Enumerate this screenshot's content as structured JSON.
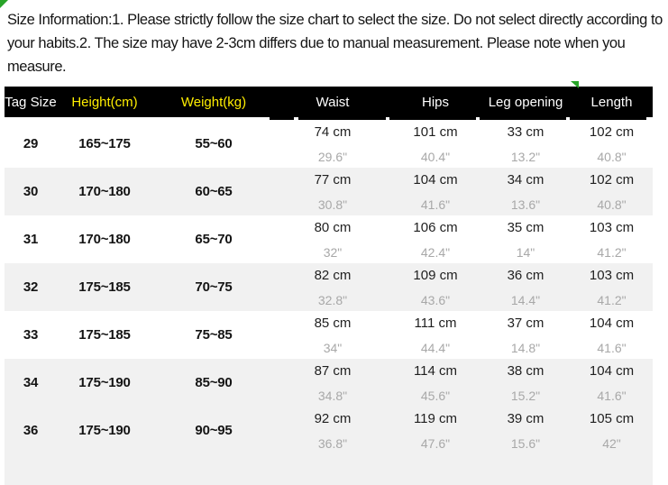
{
  "notice": "Size Information:1. Please strictly follow the size chart to select the size. Do not select directly according to your habits.2. The size may have 2-3cm differs due to manual measurement. Please note when you measure.",
  "table": {
    "headers": [
      {
        "label": "Tag Size",
        "highlight": false
      },
      {
        "label": "Height(cm)",
        "highlight": true
      },
      {
        "label": "Weight(kg)",
        "highlight": true
      },
      {
        "label": "Waist",
        "highlight": false
      },
      {
        "label": "Hips",
        "highlight": false
      },
      {
        "label": "Leg opening",
        "highlight": false
      },
      {
        "label": "Length",
        "highlight": false
      }
    ],
    "rows": [
      {
        "tag": "29",
        "height": "165~175",
        "weight": "55~60",
        "measures": [
          {
            "cm": "74 cm",
            "in": "29.6\""
          },
          {
            "cm": "101 cm",
            "in": "40.4\""
          },
          {
            "cm": "33 cm",
            "in": "13.2\""
          },
          {
            "cm": "102 cm",
            "in": "40.8\""
          }
        ]
      },
      {
        "tag": "30",
        "height": "170~180",
        "weight": "60~65",
        "measures": [
          {
            "cm": "77 cm",
            "in": "30.8\""
          },
          {
            "cm": "104 cm",
            "in": "41.6\""
          },
          {
            "cm": "34 cm",
            "in": "13.6\""
          },
          {
            "cm": "102 cm",
            "in": "40.8\""
          }
        ]
      },
      {
        "tag": "31",
        "height": "170~180",
        "weight": "65~70",
        "measures": [
          {
            "cm": "80 cm",
            "in": "32\""
          },
          {
            "cm": "106 cm",
            "in": "42.4\""
          },
          {
            "cm": "35 cm",
            "in": "14\""
          },
          {
            "cm": "103 cm",
            "in": "41.2\""
          }
        ]
      },
      {
        "tag": "32",
        "height": "175~185",
        "weight": "70~75",
        "measures": [
          {
            "cm": "82 cm",
            "in": "32.8\""
          },
          {
            "cm": "109 cm",
            "in": "43.6\""
          },
          {
            "cm": "36 cm",
            "in": "14.4\""
          },
          {
            "cm": "103 cm",
            "in": "41.2\""
          }
        ]
      },
      {
        "tag": "33",
        "height": "175~185",
        "weight": "75~85",
        "measures": [
          {
            "cm": "85 cm",
            "in": "34\""
          },
          {
            "cm": "111 cm",
            "in": "44.4\""
          },
          {
            "cm": "37 cm",
            "in": "14.8\""
          },
          {
            "cm": "104 cm",
            "in": "41.6\""
          }
        ]
      },
      {
        "tag": "34",
        "height": "175~190",
        "weight": "85~90",
        "measures": [
          {
            "cm": "87 cm",
            "in": "34.8\""
          },
          {
            "cm": "114 cm",
            "in": "45.6\""
          },
          {
            "cm": "38 cm",
            "in": "15.2\""
          },
          {
            "cm": "104 cm",
            "in": "41.6\""
          }
        ]
      },
      {
        "tag": "36",
        "height": "175~190",
        "weight": "90~95",
        "measures": [
          {
            "cm": "92 cm",
            "in": "36.8\""
          },
          {
            "cm": "119 cm",
            "in": "47.6\""
          },
          {
            "cm": "39 cm",
            "in": "15.6\""
          },
          {
            "cm": "105 cm",
            "in": "42\""
          }
        ]
      }
    ]
  },
  "colors": {
    "header_bg": "#000000",
    "header_text": "#ffffff",
    "header_highlight": "#ffee00",
    "row_shade": "#f1f1f1",
    "cm_text": "#1f1f1f",
    "inch_text": "#a8a8a8",
    "mark_green": "#28a428"
  }
}
